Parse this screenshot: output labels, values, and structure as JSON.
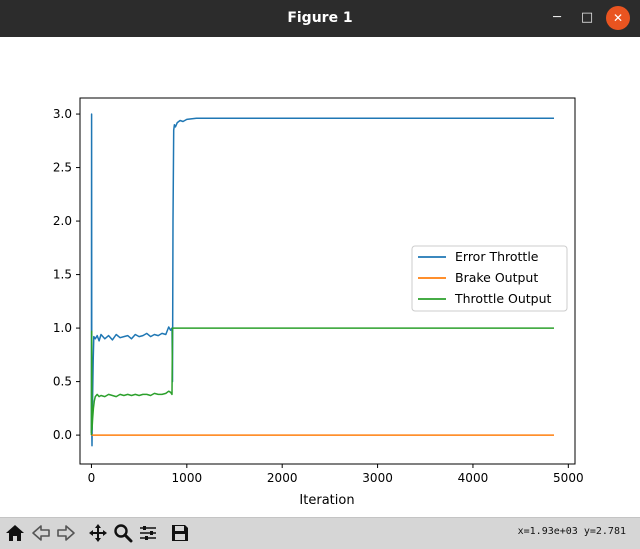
{
  "window": {
    "title": "Figure 1",
    "minimize_glyph": "─",
    "maximize_glyph": "□",
    "close_glyph": "✕"
  },
  "toolbar": {
    "icons": [
      "home-icon",
      "back-icon",
      "forward-icon",
      "pan-icon",
      "zoom-icon",
      "configure-subplots-icon",
      "save-icon"
    ],
    "coords": "x=1.93e+03 y=2.781"
  },
  "colors": {
    "title_bar": "#2c2c2c",
    "close_button": "#e95420",
    "toolbar": "#d6d6d6",
    "error_throttle": "#1f77b4",
    "brake_output": "#ff7f0e",
    "throttle_output": "#2ca02c"
  },
  "chart_data": {
    "type": "line",
    "title": "",
    "xlabel": "Iteration",
    "ylabel": "",
    "xlim": [
      -120,
      5070
    ],
    "ylim": [
      -0.27,
      3.15
    ],
    "xticks": [
      0,
      1000,
      2000,
      3000,
      4000,
      5000
    ],
    "yticks": [
      0.0,
      0.5,
      1.0,
      1.5,
      2.0,
      2.5,
      3.0
    ],
    "xtick_labels": [
      "0",
      "1000",
      "2000",
      "3000",
      "4000",
      "5000"
    ],
    "ytick_labels": [
      "0.0",
      "0.5",
      "1.0",
      "1.5",
      "2.0",
      "2.5",
      "3.0"
    ],
    "grid": false,
    "legend": "center-right",
    "series": [
      {
        "name": "Error Throttle",
        "color": "#1f77b4",
        "x": [
          0,
          2,
          4,
          6,
          8,
          12,
          18,
          25,
          40,
          60,
          80,
          100,
          140,
          180,
          220,
          260,
          300,
          340,
          380,
          420,
          460,
          500,
          540,
          580,
          620,
          660,
          700,
          740,
          780,
          810,
          830,
          845,
          850,
          855,
          862,
          870,
          880,
          900,
          930,
          960,
          1000,
          1100,
          2000,
          3000,
          4000,
          4850
        ],
        "y": [
          0.02,
          3.0,
          0.05,
          -0.1,
          0.1,
          0.35,
          0.7,
          0.92,
          0.9,
          0.93,
          0.88,
          0.94,
          0.9,
          0.93,
          0.89,
          0.94,
          0.91,
          0.92,
          0.93,
          0.9,
          0.94,
          0.92,
          0.93,
          0.95,
          0.92,
          0.94,
          0.93,
          0.95,
          0.94,
          1.01,
          0.98,
          1.0,
          0.5,
          2.0,
          2.85,
          2.9,
          2.88,
          2.92,
          2.94,
          2.93,
          2.95,
          2.96,
          2.96,
          2.96,
          2.96,
          2.96
        ]
      },
      {
        "name": "Brake Output",
        "color": "#ff7f0e",
        "x": [
          0,
          4850
        ],
        "y": [
          0.0,
          0.0
        ]
      },
      {
        "name": "Throttle Output",
        "color": "#2ca02c",
        "x": [
          0,
          3,
          6,
          12,
          20,
          30,
          40,
          60,
          80,
          100,
          140,
          180,
          220,
          260,
          300,
          340,
          380,
          420,
          460,
          500,
          540,
          580,
          620,
          660,
          700,
          740,
          780,
          810,
          830,
          845,
          850,
          860,
          900,
          1000,
          2000,
          3000,
          4000,
          4850
        ],
        "y": [
          0.0,
          0.97,
          0.05,
          0.15,
          0.25,
          0.32,
          0.36,
          0.38,
          0.36,
          0.37,
          0.36,
          0.38,
          0.37,
          0.36,
          0.38,
          0.37,
          0.38,
          0.37,
          0.38,
          0.37,
          0.38,
          0.38,
          0.37,
          0.39,
          0.38,
          0.38,
          0.39,
          0.41,
          0.4,
          0.38,
          1.0,
          1.0,
          1.0,
          1.0,
          1.0,
          1.0,
          1.0,
          1.0
        ]
      }
    ]
  }
}
